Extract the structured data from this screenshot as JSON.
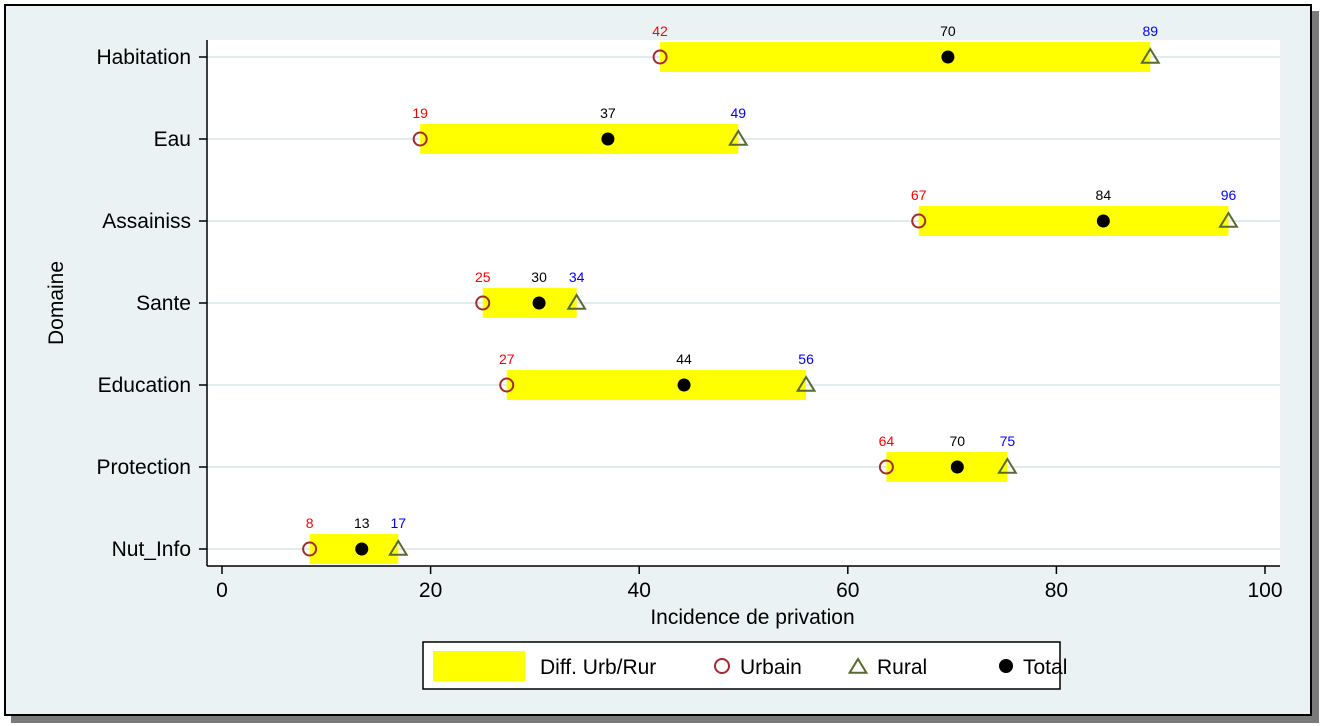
{
  "chart_data": {
    "type": "dot-range",
    "xlabel": "Incidence de privation",
    "ylabel": "Domaine",
    "xlim": [
      0,
      100
    ],
    "xticks": [
      0,
      20,
      40,
      60,
      80,
      100
    ],
    "grid": true,
    "legend_position": "bottom",
    "categories": [
      "Habitation",
      "Eau",
      "Assainiss",
      "Sante",
      "Education",
      "Protection",
      "Nut_Info"
    ],
    "series": [
      {
        "name": "Urbain",
        "values": [
          42,
          19,
          67,
          25,
          27,
          64,
          8
        ]
      },
      {
        "name": "Rural",
        "values": [
          89,
          49,
          96,
          34,
          56,
          75,
          17
        ]
      },
      {
        "name": "Total",
        "values": [
          70,
          37,
          84,
          30,
          44,
          70,
          13
        ]
      }
    ],
    "marker_values": {
      "Urbain": [
        42,
        19,
        66.8,
        25,
        27.3,
        63.7,
        8.4
      ],
      "Rural": [
        89,
        49.5,
        96.5,
        34,
        56,
        75.3,
        16.9
      ],
      "Total": [
        69.6,
        37,
        84.5,
        30.4,
        44.3,
        70.5,
        13.4
      ]
    },
    "bar_series": {
      "name": "Diff. Urb/Rur"
    },
    "legend": [
      {
        "label": "Diff. Urb/Rur",
        "symbol": "yellow-bar"
      },
      {
        "label": "Urbain",
        "symbol": "hollow-circle"
      },
      {
        "label": "Rural",
        "symbol": "hollow-triangle"
      },
      {
        "label": "Total",
        "symbol": "filled-circle"
      }
    ]
  },
  "colors": {
    "outer_background": "#eaf2f3",
    "plot_background": "#ffffff",
    "bar": "#ffff00",
    "urbain_marker": "#a52a2a",
    "urbain_label": "#ff0000",
    "rural_marker": "#556b2f",
    "rural_label": "#0000ff",
    "total_marker": "#000000",
    "total_label": "#000000",
    "grid": "#e2ecee"
  }
}
